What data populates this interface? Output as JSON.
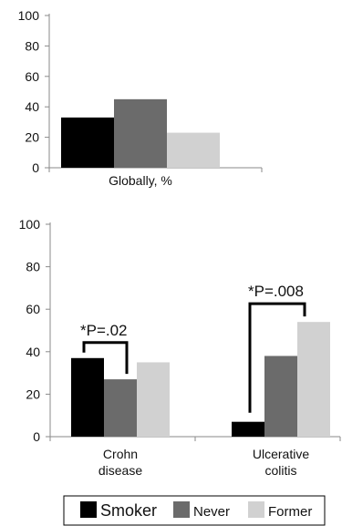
{
  "chart_data": [
    {
      "type": "bar",
      "categories": [
        "Globally, %"
      ],
      "series": [
        {
          "name": "Smoker",
          "values": [
            33
          ]
        },
        {
          "name": "Never",
          "values": [
            45
          ]
        },
        {
          "name": "Former",
          "values": [
            23
          ]
        }
      ],
      "ylim": [
        0,
        100
      ],
      "yticks": [
        "0",
        "20",
        "40",
        "60",
        "80",
        "100"
      ],
      "grid": false
    },
    {
      "type": "bar",
      "categories": [
        "Crohn disease",
        "Ulcerative colitis"
      ],
      "category_lines": [
        [
          "Crohn",
          "disease"
        ],
        [
          "Ulcerative",
          "colitis"
        ]
      ],
      "series": [
        {
          "name": "Smoker",
          "values": [
            37,
            7
          ]
        },
        {
          "name": "Never",
          "values": [
            27,
            38
          ]
        },
        {
          "name": "Former",
          "values": [
            35,
            54
          ]
        }
      ],
      "ylim": [
        0,
        100
      ],
      "yticks": [
        "0",
        "20",
        "40",
        "60",
        "80",
        "100"
      ],
      "grid": false,
      "annotations": [
        {
          "text": "*P=.02",
          "category": 0,
          "from_series": 0,
          "to_series": 1
        },
        {
          "text": "*P=.008",
          "category": 1,
          "from_series": 0,
          "to_series": 2
        }
      ]
    }
  ],
  "legend": {
    "placement": "bottom",
    "entries": [
      {
        "label": "Smoker",
        "color": "#000000"
      },
      {
        "label": "Never",
        "color": "#6b6b6b"
      },
      {
        "label": "Former",
        "color": "#d1d1d1"
      }
    ]
  },
  "colors": {
    "smoker": "#000000",
    "never": "#6b6b6b",
    "former": "#d1d1d1",
    "axis": "#8a8a8a"
  }
}
